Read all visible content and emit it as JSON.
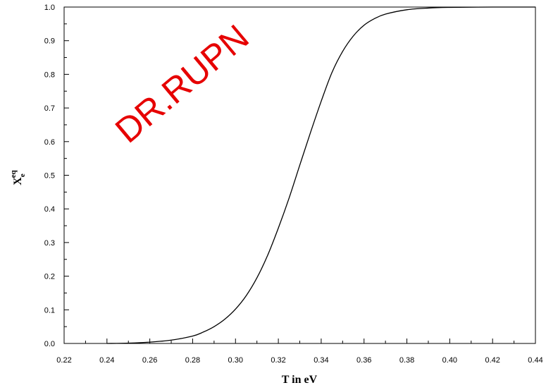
{
  "chart_data": {
    "type": "line",
    "xlabel": "T in eV",
    "ylabel_main": "X",
    "ylabel_sub": "e",
    "ylabel_sup": "eq",
    "xlim": [
      0.22,
      0.44
    ],
    "ylim": [
      0.0,
      1.0
    ],
    "x_ticks": [
      "0.22",
      "0.24",
      "0.26",
      "0.28",
      "0.30",
      "0.32",
      "0.34",
      "0.36",
      "0.38",
      "0.40",
      "0.42",
      "0.44"
    ],
    "y_ticks": [
      "0.0",
      "0.1",
      "0.2",
      "0.3",
      "0.4",
      "0.5",
      "0.6",
      "0.7",
      "0.8",
      "0.9",
      "1.0"
    ],
    "grid": false,
    "series": [
      {
        "color": "#000000",
        "x": [
          0.24,
          0.25,
          0.26,
          0.27,
          0.28,
          0.285,
          0.29,
          0.295,
          0.3,
          0.305,
          0.31,
          0.315,
          0.32,
          0.325,
          0.33,
          0.335,
          0.34,
          0.345,
          0.35,
          0.355,
          0.36,
          0.365,
          0.37,
          0.38,
          0.39,
          0.4,
          0.42,
          0.44
        ],
        "y": [
          0.0,
          0.001,
          0.004,
          0.01,
          0.022,
          0.034,
          0.05,
          0.072,
          0.102,
          0.142,
          0.195,
          0.262,
          0.343,
          0.432,
          0.53,
          0.627,
          0.72,
          0.805,
          0.868,
          0.914,
          0.946,
          0.966,
          0.979,
          0.992,
          0.997,
          0.999,
          1.0,
          1.0
        ]
      }
    ]
  },
  "watermark": {
    "text": "DR.RUPN",
    "color": "#e60000"
  }
}
